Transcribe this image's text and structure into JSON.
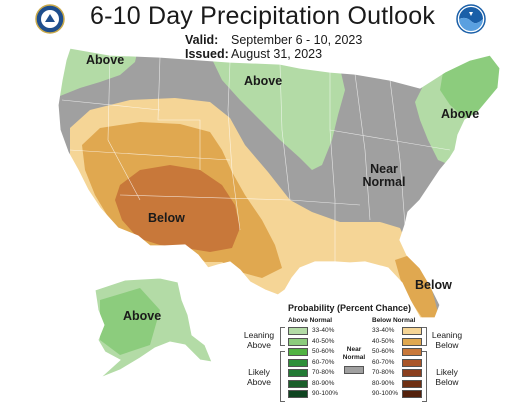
{
  "title": "6-10 Day Precipitation Outlook",
  "valid_label": "Valid:",
  "valid_value": "September 6 - 10, 2023",
  "issued_label": "Issued:",
  "issued_value": "August 31, 2023",
  "logos": {
    "left": "doc-seal-icon",
    "right": "noaa-logo-icon"
  },
  "map_labels": {
    "above_nw": "Above",
    "above_north": "Above",
    "above_ne": "Above",
    "near_normal": "Near Normal",
    "below_sw": "Below",
    "below_fl": "Below",
    "above_ak": "Above"
  },
  "legend": {
    "title": "Probability (Percent Chance)",
    "above_header": "Above Normal",
    "below_header": "Below Normal",
    "near_label": "Near Normal",
    "leaning_above": "Leaning Above",
    "likely_above": "Likely Above",
    "leaning_below": "Leaning Below",
    "likely_below": "Likely Below",
    "ranges": [
      "33-40%",
      "40-50%",
      "50-60%",
      "60-70%",
      "70-80%",
      "80-90%",
      "90-100%"
    ],
    "above_colors": [
      "#b3dba6",
      "#8ccc7d",
      "#52b343",
      "#2f8f3a",
      "#237a35",
      "#1a5e2a",
      "#0f4420"
    ],
    "below_colors": [
      "#f5d596",
      "#e0a850",
      "#c8783a",
      "#a9562a",
      "#8a3f1f",
      "#6e3014",
      "#54210c"
    ],
    "near_color": "#a0a0a0"
  },
  "colors": {
    "normal_gray": "#a0a0a0",
    "above_light": "#b3dba6",
    "above_mid": "#8ccc7d",
    "below_light": "#f5d596",
    "below_mid": "#e0a850",
    "below_dark": "#c8783a"
  }
}
